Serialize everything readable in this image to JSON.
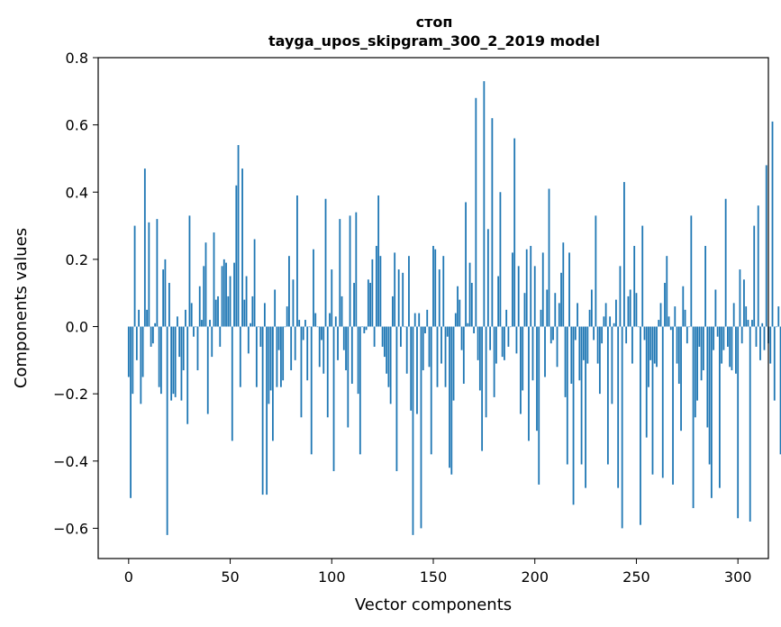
{
  "chart_data": {
    "type": "bar",
    "title": "стоп",
    "subtitle": "tayga_upos_skipgram_300_2_2019 model",
    "xlabel": "Vector components",
    "ylabel": "Components values",
    "xlim": [
      -15,
      315
    ],
    "ylim": [
      -0.69,
      0.8
    ],
    "xticks": [
      0,
      50,
      100,
      150,
      200,
      250,
      300
    ],
    "yticks": [
      -0.6,
      -0.4,
      -0.2,
      0.0,
      0.2,
      0.4,
      0.6,
      0.8
    ],
    "ytick_labels": [
      "−0.6",
      "−0.4",
      "−0.2",
      "0.0",
      "0.2",
      "0.4",
      "0.6",
      "0.8"
    ],
    "grid": false,
    "bar_color": "#1f77b4",
    "values": [
      -0.15,
      -0.51,
      -0.2,
      0.3,
      -0.1,
      0.05,
      -0.23,
      -0.15,
      0.47,
      0.05,
      0.31,
      -0.06,
      -0.05,
      0.01,
      0.32,
      -0.18,
      -0.2,
      0.17,
      0.2,
      -0.62,
      0.13,
      -0.22,
      -0.2,
      -0.21,
      0.03,
      -0.09,
      -0.22,
      -0.13,
      0.05,
      -0.29,
      0.33,
      0.07,
      -0.03,
      0.0,
      -0.13,
      0.12,
      0.02,
      0.18,
      0.25,
      -0.26,
      0.02,
      -0.09,
      0.28,
      0.08,
      0.09,
      -0.06,
      0.18,
      0.2,
      0.19,
      0.09,
      0.15,
      -0.34,
      0.19,
      0.42,
      0.54,
      -0.18,
      0.47,
      0.08,
      0.15,
      -0.08,
      0.01,
      0.09,
      0.26,
      -0.18,
      0.0,
      -0.06,
      -0.5,
      0.07,
      -0.5,
      -0.23,
      -0.19,
      -0.34,
      0.11,
      -0.18,
      -0.07,
      -0.18,
      -0.16,
      0.0,
      0.06,
      0.21,
      -0.13,
      0.14,
      -0.1,
      0.39,
      0.02,
      -0.27,
      -0.04,
      0.02,
      -0.16,
      0.0,
      -0.38,
      0.23,
      0.04,
      0.0,
      -0.12,
      -0.04,
      -0.14,
      0.38,
      -0.27,
      0.04,
      0.17,
      -0.43,
      0.03,
      -0.1,
      0.32,
      0.09,
      -0.07,
      -0.13,
      -0.3,
      0.33,
      -0.17,
      0.13,
      0.34,
      -0.2,
      -0.38,
      0.0,
      -0.02,
      -0.01,
      0.14,
      0.13,
      0.2,
      -0.06,
      0.24,
      0.39,
      0.21,
      -0.06,
      -0.09,
      -0.14,
      -0.18,
      -0.23,
      0.09,
      0.22,
      -0.43,
      0.17,
      -0.06,
      0.16,
      0.0,
      -0.14,
      0.21,
      -0.25,
      -0.62,
      0.04,
      -0.26,
      0.04,
      -0.6,
      -0.13,
      -0.02,
      0.05,
      -0.12,
      -0.38,
      0.24,
      0.23,
      -0.18,
      0.17,
      -0.11,
      0.21,
      -0.18,
      -0.03,
      -0.42,
      -0.44,
      -0.22,
      0.04,
      0.12,
      0.08,
      -0.07,
      -0.17,
      0.37,
      0.01,
      0.19,
      0.13,
      -0.02,
      0.68,
      -0.1,
      -0.19,
      -0.37,
      0.73,
      -0.27,
      0.29,
      -0.07,
      0.62,
      -0.21,
      -0.11,
      0.15,
      0.4,
      -0.09,
      -0.1,
      0.05,
      -0.06,
      0.0,
      0.22,
      0.56,
      -0.08,
      0.18,
      -0.26,
      -0.19,
      0.1,
      0.23,
      -0.34,
      0.24,
      -0.16,
      0.18,
      -0.31,
      -0.47,
      0.05,
      0.22,
      -0.15,
      0.11,
      0.41,
      -0.05,
      -0.04,
      0.1,
      -0.12,
      0.07,
      0.16,
      0.25,
      -0.21,
      -0.41,
      0.22,
      -0.17,
      -0.53,
      -0.04,
      0.07,
      -0.16,
      -0.41,
      -0.1,
      -0.48,
      -0.11,
      0.05,
      0.11,
      -0.04,
      0.33,
      -0.11,
      -0.2,
      -0.05,
      0.03,
      0.07,
      -0.41,
      0.03,
      -0.23,
      0.01,
      0.08,
      -0.48,
      0.18,
      -0.6,
      0.43,
      -0.05,
      0.09,
      0.11,
      -0.11,
      0.24,
      0.1,
      0.0,
      -0.59,
      0.3,
      -0.04,
      -0.33,
      -0.18,
      -0.1,
      -0.44,
      -0.11,
      -0.12,
      0.02,
      0.07,
      -0.45,
      0.13,
      0.21,
      0.03,
      -0.01,
      -0.47,
      0.06,
      -0.11,
      -0.17,
      -0.31,
      0.12,
      0.05,
      -0.05,
      0.0,
      0.33,
      -0.54,
      -0.27,
      -0.22,
      -0.06,
      -0.16,
      -0.13,
      0.24,
      -0.3,
      -0.41,
      -0.51,
      -0.07,
      0.11,
      -0.03,
      -0.48,
      -0.11,
      -0.07,
      0.38,
      -0.06,
      -0.12,
      -0.13,
      0.07,
      -0.14,
      -0.57,
      0.17,
      -0.05,
      0.14,
      0.06,
      0.02,
      -0.58,
      0.02,
      0.3,
      -0.06,
      0.36,
      -0.1,
      0.01,
      -0.07,
      0.48,
      -0.05,
      -0.11,
      0.61,
      -0.22,
      0.0,
      0.06,
      -0.38
    ]
  }
}
